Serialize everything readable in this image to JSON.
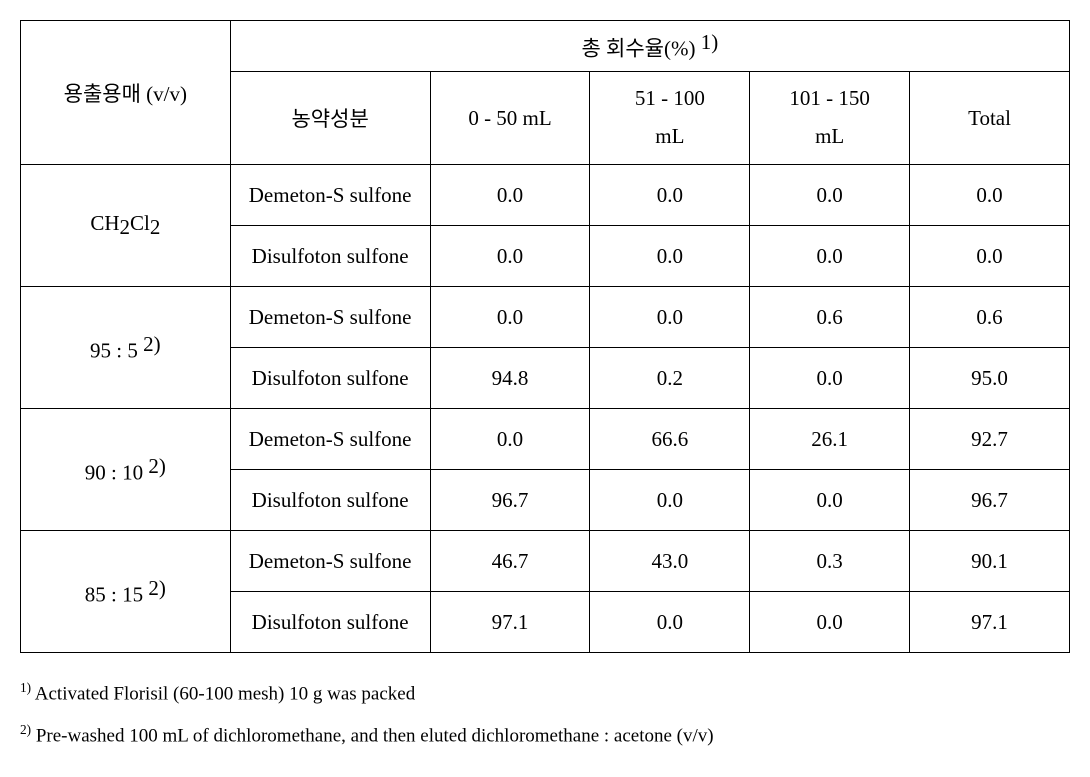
{
  "table": {
    "header": {
      "col1": "용출용매 (v/v)",
      "recovery_label_pre": "총 회수율(%) ",
      "recovery_label_sup": "1)",
      "sub": {
        "pesticide": "농약성분",
        "frac1": "0 - 50 mL",
        "frac2_line1": "51 - 100",
        "frac2_line2": "mL",
        "frac3_line1": "101 - 150",
        "frac3_line2": "mL",
        "total": "Total"
      }
    },
    "rows": [
      {
        "solvent_pre": "CH",
        "solvent_sub1": "2",
        "solvent_mid": "Cl",
        "solvent_sub2": "2",
        "solvent_sup": "",
        "sub": [
          {
            "pest": "Demeton-S sulfone",
            "v1": "0.0",
            "v2": "0.0",
            "v3": "0.0",
            "tot": "0.0"
          },
          {
            "pest": "Disulfoton sulfone",
            "v1": "0.0",
            "v2": "0.0",
            "v3": "0.0",
            "tot": "0.0"
          }
        ]
      },
      {
        "solvent_label": "95 : 5 ",
        "solvent_sup": "2)",
        "sub": [
          {
            "pest": "Demeton-S sulfone",
            "v1": "0.0",
            "v2": "0.0",
            "v3": "0.6",
            "tot": "0.6"
          },
          {
            "pest": "Disulfoton sulfone",
            "v1": "94.8",
            "v2": "0.2",
            "v3": "0.0",
            "tot": "95.0"
          }
        ]
      },
      {
        "solvent_label": "90 : 10 ",
        "solvent_sup": "2)",
        "sub": [
          {
            "pest": "Demeton-S sulfone",
            "v1": "0.0",
            "v2": "66.6",
            "v3": "26.1",
            "tot": "92.7"
          },
          {
            "pest": "Disulfoton sulfone",
            "v1": "96.7",
            "v2": "0.0",
            "v3": "0.0",
            "tot": "96.7"
          }
        ]
      },
      {
        "solvent_label": "85 : 15 ",
        "solvent_sup": "2)",
        "sub": [
          {
            "pest": "Demeton-S sulfone",
            "v1": "46.7",
            "v2": "43.0",
            "v3": "0.3",
            "tot": "90.1"
          },
          {
            "pest": "Disulfoton sulfone",
            "v1": "97.1",
            "v2": "0.0",
            "v3": "0.0",
            "tot": "97.1"
          }
        ]
      }
    ]
  },
  "footnotes": {
    "n1_sup": "1)",
    "n1_text": " Activated Florisil (60-100 mesh) 10 g was packed",
    "n2_sup": "2)",
    "n2_text": " Pre-washed 100 mL of dichloromethane, and then eluted dichloromethane : acetone (v/v)"
  },
  "style": {
    "border_color": "#000000",
    "background_color": "#ffffff",
    "text_color": "#000000",
    "font_size_cell": 21,
    "font_size_footnote": 19
  }
}
